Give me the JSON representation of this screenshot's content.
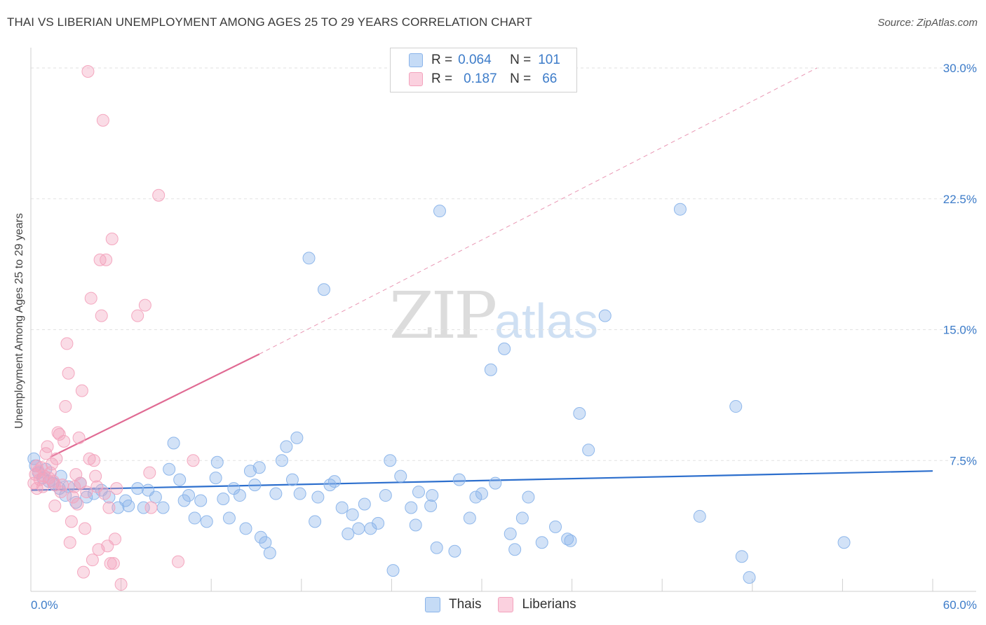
{
  "title": "THAI VS LIBERIAN UNEMPLOYMENT AMONG AGES 25 TO 29 YEARS CORRELATION CHART",
  "source": "Source: ZipAtlas.com",
  "watermark": {
    "zip": "ZIP",
    "atlas": "atlas"
  },
  "legend": {
    "rows": [
      {
        "r_label": "R =",
        "r_value": "0.064",
        "n_label": "N =",
        "n_value": "101",
        "color": "#a9c8f2"
      },
      {
        "r_label": "R =",
        "r_value": "0.187",
        "n_label": "N =",
        "n_value": "66",
        "color": "#f6b8cc"
      }
    ]
  },
  "bottom_legend": [
    {
      "label": "Thais",
      "color": "#a9c8f2"
    },
    {
      "label": "Liberians",
      "color": "#f6b8cc"
    }
  ],
  "chart_data": {
    "type": "scatter",
    "title": "THAI VS LIBERIAN UNEMPLOYMENT AMONG AGES 25 TO 29 YEARS CORRELATION CHART",
    "xlabel": "",
    "ylabel": "Unemployment Among Ages 25 to 29 years",
    "xlim": [
      0,
      60
    ],
    "ylim": [
      0,
      30
    ],
    "x_tick_labels": [
      {
        "value": 0,
        "label": "0.0%"
      },
      {
        "value": 60,
        "label": "60.0%"
      }
    ],
    "y_tick_labels": [
      {
        "value": 7.5,
        "label": "7.5%"
      },
      {
        "value": 15,
        "label": "15.0%"
      },
      {
        "value": 22.5,
        "label": "22.5%"
      },
      {
        "value": 30,
        "label": "30.0%"
      }
    ],
    "x_minor_ticks": [
      6,
      12,
      18,
      24,
      30,
      36,
      42,
      48,
      54,
      60
    ],
    "series": [
      {
        "name": "Thais",
        "color": "#8ab4ea",
        "line_color": "#2d6fcd",
        "trend": {
          "x0": 0,
          "y0": 5.8,
          "x1": 60,
          "y1": 6.9,
          "dashed_to": null
        },
        "points": [
          [
            0.2,
            7.6
          ],
          [
            0.5,
            6.8
          ],
          [
            0.8,
            6.5
          ],
          [
            1.2,
            6.3
          ],
          [
            1.5,
            6.2
          ],
          [
            1.9,
            5.9
          ],
          [
            2.3,
            5.5
          ],
          [
            2.5,
            6.0
          ],
          [
            3.0,
            5.1
          ],
          [
            3.3,
            6.2
          ],
          [
            3.7,
            5.4
          ],
          [
            4.2,
            5.6
          ],
          [
            4.7,
            5.8
          ],
          [
            5.2,
            5.4
          ],
          [
            5.8,
            4.8
          ],
          [
            6.3,
            5.2
          ],
          [
            6.5,
            4.9
          ],
          [
            7.1,
            5.9
          ],
          [
            7.5,
            4.8
          ],
          [
            7.8,
            5.8
          ],
          [
            8.3,
            5.4
          ],
          [
            8.8,
            4.8
          ],
          [
            9.2,
            7.0
          ],
          [
            9.5,
            8.5
          ],
          [
            9.9,
            6.4
          ],
          [
            10.2,
            5.2
          ],
          [
            10.5,
            5.5
          ],
          [
            10.9,
            4.2
          ],
          [
            11.3,
            5.2
          ],
          [
            11.7,
            4.0
          ],
          [
            12.3,
            6.5
          ],
          [
            12.4,
            7.4
          ],
          [
            12.8,
            5.3
          ],
          [
            13.2,
            4.2
          ],
          [
            13.5,
            5.9
          ],
          [
            13.9,
            5.5
          ],
          [
            14.3,
            3.6
          ],
          [
            14.6,
            6.9
          ],
          [
            14.9,
            6.1
          ],
          [
            15.2,
            7.1
          ],
          [
            15.3,
            3.1
          ],
          [
            15.6,
            2.8
          ],
          [
            15.9,
            2.2
          ],
          [
            16.3,
            5.6
          ],
          [
            16.7,
            7.5
          ],
          [
            17.0,
            8.3
          ],
          [
            17.4,
            6.4
          ],
          [
            17.7,
            8.8
          ],
          [
            17.9,
            5.6
          ],
          [
            18.5,
            19.1
          ],
          [
            18.9,
            4.0
          ],
          [
            19.1,
            5.4
          ],
          [
            19.5,
            17.3
          ],
          [
            19.9,
            6.1
          ],
          [
            20.2,
            6.3
          ],
          [
            20.7,
            4.8
          ],
          [
            21.1,
            3.3
          ],
          [
            21.4,
            4.4
          ],
          [
            21.8,
            3.6
          ],
          [
            22.2,
            5.0
          ],
          [
            22.6,
            3.6
          ],
          [
            23.1,
            3.9
          ],
          [
            23.6,
            5.5
          ],
          [
            23.9,
            7.5
          ],
          [
            24.1,
            1.2
          ],
          [
            24.6,
            6.6
          ],
          [
            25.3,
            4.8
          ],
          [
            25.6,
            3.8
          ],
          [
            25.8,
            5.7
          ],
          [
            26.7,
            5.5
          ],
          [
            26.6,
            4.9
          ],
          [
            27.0,
            2.5
          ],
          [
            27.2,
            21.8
          ],
          [
            28.2,
            2.3
          ],
          [
            28.5,
            6.4
          ],
          [
            29.2,
            4.2
          ],
          [
            29.6,
            5.4
          ],
          [
            30.0,
            5.6
          ],
          [
            30.6,
            12.7
          ],
          [
            30.9,
            6.2
          ],
          [
            31.5,
            13.9
          ],
          [
            31.9,
            3.3
          ],
          [
            32.2,
            2.4
          ],
          [
            32.7,
            4.2
          ],
          [
            33.1,
            5.4
          ],
          [
            34.0,
            2.8
          ],
          [
            34.9,
            3.7
          ],
          [
            35.7,
            3.0
          ],
          [
            35.9,
            2.9
          ],
          [
            36.5,
            10.2
          ],
          [
            37.1,
            8.1
          ],
          [
            38.2,
            15.8
          ],
          [
            43.2,
            21.9
          ],
          [
            44.5,
            4.3
          ],
          [
            46.9,
            10.6
          ],
          [
            47.3,
            2.0
          ],
          [
            47.8,
            0.8
          ],
          [
            54.1,
            2.8
          ],
          [
            0.3,
            7.2
          ],
          [
            1.0,
            7.0
          ],
          [
            2.0,
            6.6
          ]
        ]
      },
      {
        "name": "Liberians",
        "color": "#f3a3bd",
        "line_color": "#e06a93",
        "trend": {
          "x0": 1.3,
          "y0": 7.7,
          "x1": 15.2,
          "y1": 13.6,
          "dashed_to": {
            "x": 52.3,
            "y": 30.0
          }
        },
        "points": [
          [
            0.2,
            6.2
          ],
          [
            0.3,
            6.7
          ],
          [
            0.4,
            5.9
          ],
          [
            0.5,
            6.9
          ],
          [
            0.6,
            6.4
          ],
          [
            0.7,
            7.1
          ],
          [
            0.8,
            6.0
          ],
          [
            0.9,
            6.6
          ],
          [
            1.0,
            7.9
          ],
          [
            1.1,
            8.3
          ],
          [
            1.2,
            6.5
          ],
          [
            1.3,
            6.8
          ],
          [
            1.4,
            7.3
          ],
          [
            1.5,
            6.3
          ],
          [
            1.6,
            4.9
          ],
          [
            1.7,
            7.6
          ],
          [
            1.8,
            9.1
          ],
          [
            1.9,
            9.0
          ],
          [
            2.0,
            5.7
          ],
          [
            2.1,
            6.1
          ],
          [
            2.2,
            8.6
          ],
          [
            2.3,
            10.6
          ],
          [
            2.4,
            14.2
          ],
          [
            2.5,
            12.5
          ],
          [
            2.6,
            2.8
          ],
          [
            2.7,
            4.0
          ],
          [
            2.8,
            5.4
          ],
          [
            2.9,
            6.0
          ],
          [
            3.0,
            6.7
          ],
          [
            3.1,
            5.0
          ],
          [
            3.2,
            8.8
          ],
          [
            3.3,
            6.2
          ],
          [
            3.4,
            11.5
          ],
          [
            3.5,
            1.1
          ],
          [
            3.6,
            3.6
          ],
          [
            3.7,
            5.7
          ],
          [
            3.8,
            29.8
          ],
          [
            3.9,
            7.6
          ],
          [
            4.0,
            16.8
          ],
          [
            4.1,
            1.8
          ],
          [
            4.2,
            7.5
          ],
          [
            4.3,
            6.6
          ],
          [
            4.4,
            6.0
          ],
          [
            4.5,
            2.4
          ],
          [
            4.6,
            19.0
          ],
          [
            4.7,
            15.8
          ],
          [
            4.8,
            27.0
          ],
          [
            4.9,
            5.6
          ],
          [
            5.0,
            19.0
          ],
          [
            5.1,
            2.6
          ],
          [
            5.2,
            4.8
          ],
          [
            5.3,
            1.6
          ],
          [
            5.4,
            20.2
          ],
          [
            5.5,
            1.6
          ],
          [
            5.6,
            3.0
          ],
          [
            5.7,
            5.9
          ],
          [
            6.0,
            0.4
          ],
          [
            7.1,
            15.8
          ],
          [
            7.6,
            16.4
          ],
          [
            7.9,
            6.8
          ],
          [
            8.0,
            4.8
          ],
          [
            8.5,
            22.7
          ],
          [
            9.8,
            1.7
          ],
          [
            10.8,
            7.5
          ],
          [
            0.4,
            7.2
          ],
          [
            1.6,
            6.1
          ]
        ]
      }
    ]
  }
}
